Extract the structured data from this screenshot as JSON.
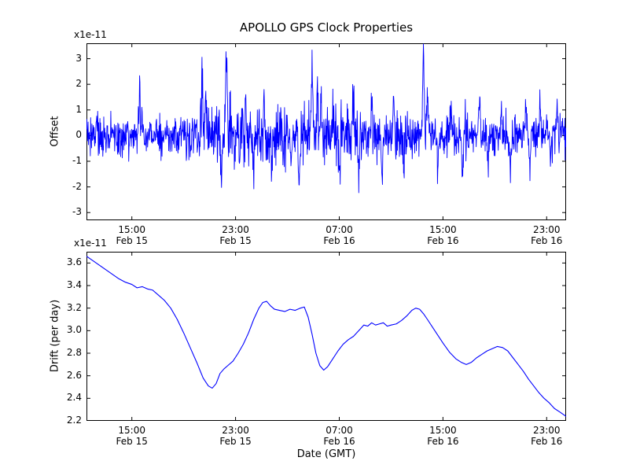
{
  "figure": {
    "title": "APOLLO GPS Clock Properties",
    "xlabel": "Date (GMT)",
    "background": "#ffffff",
    "axes_color": "#000000",
    "line_color": "#0000ff"
  },
  "chart_data": [
    {
      "type": "line",
      "name": "offset-vs-time",
      "ylabel": "Offset",
      "scale_label": "x1e-11",
      "x_unit": "hours since Feb 15 00:00 GMT",
      "xlim": [
        11.5,
        48.5
      ],
      "ylim": [
        -3.3,
        3.6
      ],
      "grid": false,
      "legend": "none",
      "yticks": [
        {
          "v": -3,
          "label": "-3"
        },
        {
          "v": -2,
          "label": "-2"
        },
        {
          "v": -1,
          "label": "-1"
        },
        {
          "v": 0,
          "label": "0"
        },
        {
          "v": 1,
          "label": "1"
        },
        {
          "v": 2,
          "label": "2"
        },
        {
          "v": 3,
          "label": "3"
        }
      ],
      "xticks": [
        {
          "v": 15,
          "line1": "15:00",
          "line2": "Feb 15"
        },
        {
          "v": 23,
          "line1": "23:00",
          "line2": "Feb 15"
        },
        {
          "v": 31,
          "line1": "07:00",
          "line2": "Feb 16"
        },
        {
          "v": 39,
          "line1": "15:00",
          "line2": "Feb 16"
        },
        {
          "v": 47,
          "line1": "23:00",
          "line2": "Feb 16"
        }
      ],
      "series": {
        "name": "clock-offset",
        "color": "#0000ff",
        "baseline": 0,
        "noise_std": 0.38,
        "noise_seed": 20140215,
        "n_points": 1500,
        "noise_bursts": [
          [
            20,
            27,
            1.5
          ],
          [
            28,
            33,
            1.4
          ],
          [
            35,
            38,
            1.2
          ]
        ],
        "spikes": [
          [
            15.6,
            1.6
          ],
          [
            15.8,
            1.2
          ],
          [
            20.4,
            2.4
          ],
          [
            20.7,
            1.5
          ],
          [
            21.9,
            -1.5
          ],
          [
            22.3,
            2.85
          ],
          [
            22.6,
            1.1
          ],
          [
            23.3,
            -1.3
          ],
          [
            23.8,
            1.1
          ],
          [
            24.4,
            -1.8
          ],
          [
            25.2,
            1.3
          ],
          [
            25.8,
            -1.2
          ],
          [
            26.5,
            1.2
          ],
          [
            27.3,
            -1.1
          ],
          [
            27.9,
            -2.1
          ],
          [
            28.9,
            3.35
          ],
          [
            29.3,
            2.4
          ],
          [
            29.6,
            1.5
          ],
          [
            30.5,
            1.2
          ],
          [
            31.0,
            -1.3
          ],
          [
            32.1,
            2.1
          ],
          [
            32.5,
            -1.9
          ],
          [
            33.5,
            1.3
          ],
          [
            34.3,
            -1.4
          ],
          [
            35.2,
            1.5
          ],
          [
            36.0,
            -1.2
          ],
          [
            37.5,
            3.5
          ],
          [
            37.8,
            1.6
          ],
          [
            38.6,
            -1.2
          ],
          [
            39.6,
            1.2
          ],
          [
            40.5,
            -1.3
          ],
          [
            41.8,
            1.3
          ],
          [
            42.5,
            -1.1
          ],
          [
            43.5,
            1.2
          ],
          [
            44.2,
            -1.5
          ],
          [
            45.4,
            1.5
          ],
          [
            45.7,
            -1.6
          ],
          [
            46.5,
            1.1
          ],
          [
            47.3,
            -1.0
          ],
          [
            47.8,
            0.9
          ]
        ]
      }
    },
    {
      "type": "line",
      "name": "drift-vs-time",
      "ylabel": "Drift (per day)",
      "xlabel": "Date (GMT)",
      "scale_label": "x1e-11",
      "x_unit": "hours since Feb 15 00:00 GMT",
      "xlim": [
        11.5,
        48.5
      ],
      "ylim": [
        2.2,
        3.7
      ],
      "grid": false,
      "legend": "none",
      "yticks": [
        {
          "v": 2.2,
          "label": "2.2"
        },
        {
          "v": 2.4,
          "label": "2.4"
        },
        {
          "v": 2.6,
          "label": "2.6"
        },
        {
          "v": 2.8,
          "label": "2.8"
        },
        {
          "v": 3.0,
          "label": "3.0"
        },
        {
          "v": 3.2,
          "label": "3.2"
        },
        {
          "v": 3.4,
          "label": "3.4"
        },
        {
          "v": 3.6,
          "label": "3.6"
        }
      ],
      "xticks": [
        {
          "v": 15,
          "line1": "15:00",
          "line2": "Feb 15"
        },
        {
          "v": 23,
          "line1": "23:00",
          "line2": "Feb 15"
        },
        {
          "v": 31,
          "line1": "07:00",
          "line2": "Feb 16"
        },
        {
          "v": 39,
          "line1": "15:00",
          "line2": "Feb 16"
        },
        {
          "v": 47,
          "line1": "23:00",
          "line2": "Feb 16"
        }
      ],
      "series": {
        "name": "clock-drift",
        "color": "#0000ff",
        "points": [
          [
            11.5,
            3.66
          ],
          [
            12.0,
            3.62
          ],
          [
            12.5,
            3.58
          ],
          [
            13.0,
            3.54
          ],
          [
            13.5,
            3.5
          ],
          [
            14.0,
            3.46
          ],
          [
            14.5,
            3.43
          ],
          [
            15.0,
            3.41
          ],
          [
            15.4,
            3.38
          ],
          [
            15.8,
            3.39
          ],
          [
            16.2,
            3.37
          ],
          [
            16.6,
            3.36
          ],
          [
            17.0,
            3.32
          ],
          [
            17.5,
            3.27
          ],
          [
            18.0,
            3.2
          ],
          [
            18.5,
            3.1
          ],
          [
            19.0,
            2.98
          ],
          [
            19.5,
            2.85
          ],
          [
            20.0,
            2.72
          ],
          [
            20.5,
            2.58
          ],
          [
            20.9,
            2.51
          ],
          [
            21.2,
            2.49
          ],
          [
            21.5,
            2.53
          ],
          [
            21.8,
            2.62
          ],
          [
            22.1,
            2.66
          ],
          [
            22.4,
            2.69
          ],
          [
            22.8,
            2.73
          ],
          [
            23.2,
            2.8
          ],
          [
            23.6,
            2.88
          ],
          [
            24.0,
            2.98
          ],
          [
            24.4,
            3.1
          ],
          [
            24.8,
            3.2
          ],
          [
            25.1,
            3.25
          ],
          [
            25.4,
            3.26
          ],
          [
            25.7,
            3.22
          ],
          [
            26.0,
            3.19
          ],
          [
            26.4,
            3.18
          ],
          [
            26.8,
            3.17
          ],
          [
            27.2,
            3.19
          ],
          [
            27.6,
            3.18
          ],
          [
            28.0,
            3.2
          ],
          [
            28.3,
            3.21
          ],
          [
            28.6,
            3.12
          ],
          [
            28.9,
            2.97
          ],
          [
            29.2,
            2.8
          ],
          [
            29.5,
            2.69
          ],
          [
            29.8,
            2.65
          ],
          [
            30.1,
            2.68
          ],
          [
            30.5,
            2.75
          ],
          [
            30.9,
            2.82
          ],
          [
            31.3,
            2.88
          ],
          [
            31.7,
            2.92
          ],
          [
            32.1,
            2.95
          ],
          [
            32.5,
            3.0
          ],
          [
            32.9,
            3.05
          ],
          [
            33.2,
            3.04
          ],
          [
            33.5,
            3.07
          ],
          [
            33.8,
            3.05
          ],
          [
            34.1,
            3.06
          ],
          [
            34.4,
            3.07
          ],
          [
            34.7,
            3.04
          ],
          [
            35.0,
            3.05
          ],
          [
            35.4,
            3.06
          ],
          [
            35.8,
            3.09
          ],
          [
            36.2,
            3.13
          ],
          [
            36.6,
            3.18
          ],
          [
            36.9,
            3.2
          ],
          [
            37.2,
            3.19
          ],
          [
            37.5,
            3.15
          ],
          [
            37.8,
            3.1
          ],
          [
            38.2,
            3.03
          ],
          [
            38.6,
            2.96
          ],
          [
            39.0,
            2.89
          ],
          [
            39.5,
            2.81
          ],
          [
            40.0,
            2.75
          ],
          [
            40.4,
            2.72
          ],
          [
            40.8,
            2.7
          ],
          [
            41.2,
            2.72
          ],
          [
            41.6,
            2.76
          ],
          [
            42.0,
            2.79
          ],
          [
            42.4,
            2.82
          ],
          [
            42.8,
            2.84
          ],
          [
            43.2,
            2.86
          ],
          [
            43.6,
            2.85
          ],
          [
            44.0,
            2.82
          ],
          [
            44.4,
            2.76
          ],
          [
            44.8,
            2.7
          ],
          [
            45.2,
            2.64
          ],
          [
            45.6,
            2.57
          ],
          [
            46.0,
            2.51
          ],
          [
            46.4,
            2.45
          ],
          [
            46.8,
            2.4
          ],
          [
            47.2,
            2.36
          ],
          [
            47.6,
            2.31
          ],
          [
            48.0,
            2.28
          ],
          [
            48.5,
            2.24
          ]
        ]
      }
    }
  ]
}
